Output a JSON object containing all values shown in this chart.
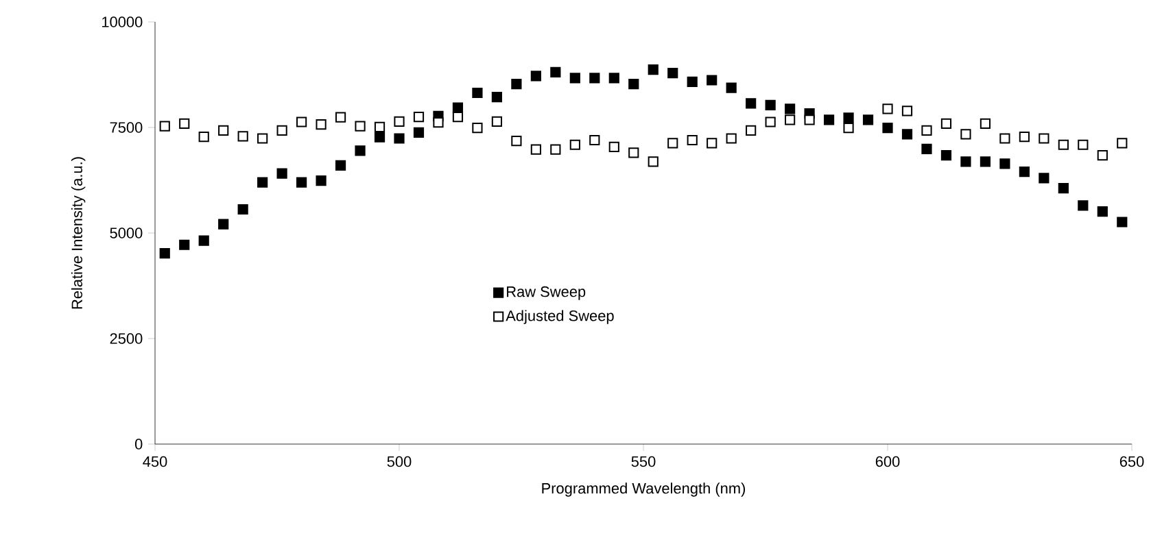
{
  "chart_data": {
    "type": "scatter",
    "xlabel": "Programmed Wavelength (nm)",
    "ylabel": "Relative Intensity (a.u.)",
    "x": [
      452,
      456,
      460,
      464,
      468,
      472,
      476,
      480,
      484,
      488,
      492,
      496,
      500,
      504,
      508,
      512,
      516,
      520,
      524,
      528,
      532,
      536,
      540,
      544,
      548,
      552,
      556,
      560,
      564,
      568,
      572,
      576,
      580,
      584,
      588,
      592,
      596,
      600,
      604,
      608,
      612,
      616,
      620,
      624,
      628,
      632,
      636,
      640,
      644,
      648
    ],
    "series": [
      {
        "name": "Raw Sweep",
        "color": "#000000",
        "values": [
          4520,
          4720,
          4820,
          5210,
          5560,
          6200,
          6410,
          6200,
          6240,
          6600,
          6950,
          7270,
          7240,
          7380,
          7770,
          7970,
          8320,
          8220,
          8530,
          8720,
          8810,
          8670,
          8670,
          8670,
          8530,
          8870,
          8790,
          8580,
          8620,
          8440,
          8070,
          8030,
          7940,
          7830,
          7680,
          7730,
          7680,
          7490,
          7340,
          6990,
          6840,
          6690,
          6690,
          6640,
          6450,
          6300,
          6060,
          5650,
          5510,
          5260
        ]
      },
      {
        "name": "Adjusted Sweep",
        "color": "#ffffff",
        "values": [
          7530,
          7590,
          7280,
          7430,
          7290,
          7240,
          7430,
          7630,
          7570,
          7740,
          7530,
          7510,
          7640,
          7750,
          7620,
          7750,
          7490,
          7640,
          7180,
          6980,
          6980,
          7090,
          7200,
          7040,
          6900,
          6690,
          7130,
          7200,
          7130,
          7240,
          7430,
          7630,
          7680,
          7680,
          null,
          7490,
          null,
          7940,
          7890,
          7430,
          7590,
          7340,
          7590,
          7240,
          7280,
          7240,
          7090,
          7090,
          6840,
          7130
        ]
      }
    ],
    "xlim": [
      450,
      650
    ],
    "xticks": [
      450,
      500,
      550,
      600,
      650
    ],
    "ylim": [
      0,
      10000
    ],
    "yticks": [
      0,
      2500,
      5000,
      7500,
      10000
    ],
    "marker": "square",
    "grid": false,
    "legend": "center"
  }
}
